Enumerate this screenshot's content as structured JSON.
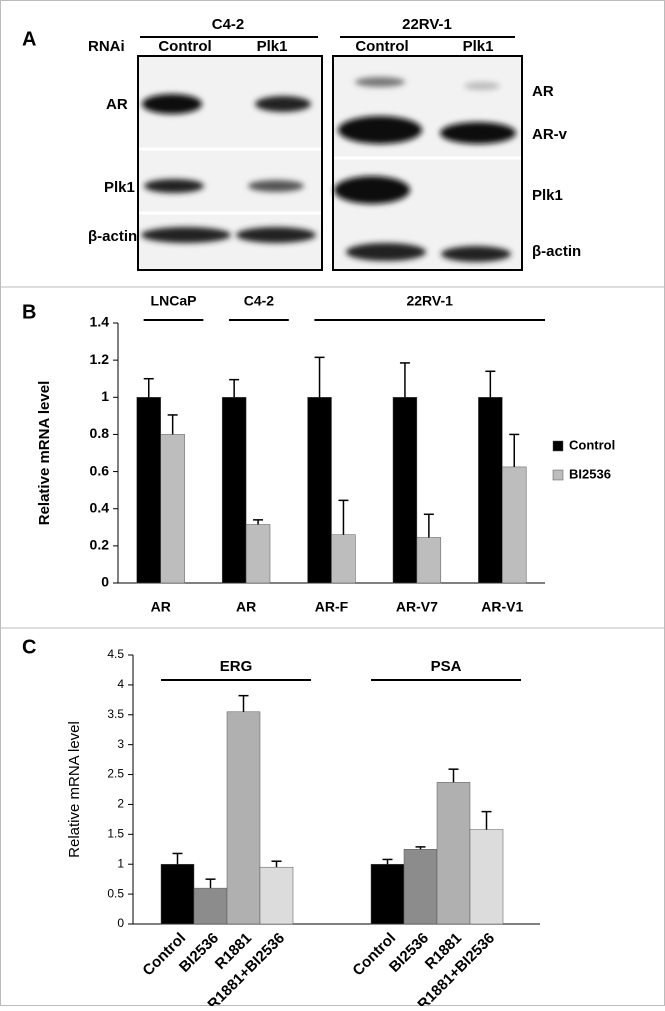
{
  "panels": [
    "A",
    "B",
    "C"
  ],
  "blot": {
    "rnai": "RNAi",
    "groups": [
      "C4-2",
      "22RV-1"
    ],
    "lanes": [
      "Control",
      "Plk1",
      "Control",
      "Plk1"
    ],
    "left_labels": [
      "AR",
      "Plk1",
      "β-actin"
    ],
    "right_labels": [
      "AR",
      "AR-v",
      "Plk1",
      "β-actin"
    ]
  },
  "chart_data": [
    {
      "type": "bar",
      "ylabel": "Relative mRNA level",
      "groups": [
        {
          "label": "LNCaP",
          "categories": [
            "AR"
          ]
        },
        {
          "label": "C4-2",
          "categories": [
            "AR"
          ]
        },
        {
          "label": "22RV-1",
          "categories": [
            "AR-F",
            "AR-V7",
            "AR-V1"
          ]
        }
      ],
      "series": [
        {
          "name": "Control",
          "color": "#000000",
          "values": [
            1,
            1,
            1,
            1,
            1
          ],
          "errors": [
            0.1,
            0.095,
            0.215,
            0.185,
            0.14
          ]
        },
        {
          "name": "BI2536",
          "color": "#bdbdbd",
          "values": [
            0.8,
            0.315,
            0.26,
            0.245,
            0.625
          ],
          "errors": [
            0.105,
            0.025,
            0.185,
            0.125,
            0.175
          ]
        }
      ],
      "ylim": [
        0,
        1.4
      ],
      "yticks": [
        0,
        0.2,
        0.4,
        0.6,
        0.8,
        1,
        1.2,
        1.4
      ],
      "legend": "right"
    },
    {
      "type": "bar",
      "ylabel": "Relative mRNA level",
      "colors": [
        "#000000",
        "#8c8c8c",
        "#b0b0b0",
        "#dcdcdc"
      ],
      "groups": [
        {
          "label": "ERG",
          "categories": [
            "Control",
            "BI2536",
            "R1881",
            "R1881+BI2536"
          ],
          "values": [
            1,
            0.6,
            3.55,
            0.95
          ],
          "errors": [
            0.18,
            0.15,
            0.27,
            0.1
          ]
        },
        {
          "label": "PSA",
          "categories": [
            "Control",
            "BI2536",
            "R1881",
            "R1881+BI2536"
          ],
          "values": [
            1,
            1.25,
            2.37,
            1.58
          ],
          "errors": [
            0.08,
            0.04,
            0.22,
            0.3
          ]
        }
      ],
      "ylim": [
        0,
        4.5
      ],
      "yticks": [
        0,
        0.5,
        1,
        1.5,
        2,
        2.5,
        3,
        3.5,
        4,
        4.5
      ]
    }
  ]
}
